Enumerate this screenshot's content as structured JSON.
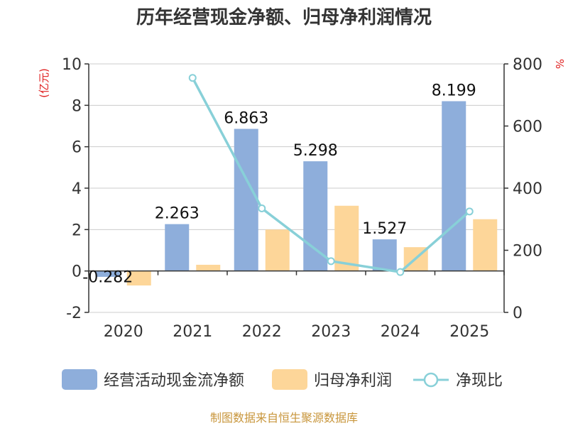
{
  "chart_data": {
    "type": "bar",
    "title": "历年经营现金净额、归母净利润情况",
    "left_axis_unit": "(亿元)",
    "right_axis_unit": "%",
    "categories": [
      "2020",
      "2021",
      "2022",
      "2023",
      "2024",
      "2025"
    ],
    "ylim": [
      -2,
      10
    ],
    "y_ticks": [
      -2,
      0,
      2,
      4,
      6,
      8,
      10
    ],
    "y2lim": [
      0,
      800
    ],
    "y2_ticks": [
      0,
      200,
      400,
      600,
      800
    ],
    "series": [
      {
        "name": "经营活动现金流净额",
        "type": "bar",
        "axis": "left",
        "color": "#8eaedb",
        "values": [
          -0.282,
          2.263,
          6.863,
          5.298,
          1.527,
          8.199
        ],
        "labels": [
          "-0.282",
          "2.263",
          "6.863",
          "5.298",
          "1.527",
          "8.199"
        ]
      },
      {
        "name": "归母净利润",
        "type": "bar",
        "axis": "left",
        "color": "#fdd699",
        "values": [
          -0.7,
          0.3,
          2.0,
          3.15,
          1.15,
          2.5
        ]
      },
      {
        "name": "净现比",
        "type": "line",
        "axis": "right",
        "color": "#88d0d8",
        "values": [
          null,
          755,
          335,
          165,
          130,
          325
        ]
      }
    ],
    "legend_position": "bottom",
    "grid": true,
    "source": "制图数据来自恒生聚源数据库"
  }
}
